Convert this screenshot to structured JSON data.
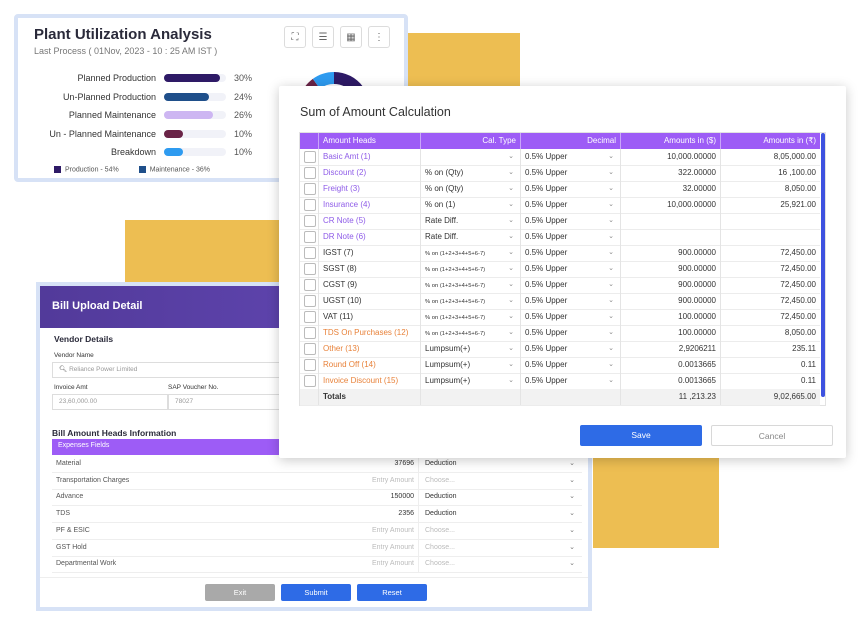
{
  "colors": {
    "purple_header": "#9D5CF6",
    "primary_blue": "#2E6BE6",
    "decor_yellow": "#EDBE52",
    "link_purple": "#8E5BE8",
    "link_orange": "#E8823A"
  },
  "plant": {
    "title": "Plant Utilization Analysis",
    "subtitle": "Last Process ( 01Nov, 2023 - 10 : 25 AM IST )",
    "icons": [
      "fullscreen-icon",
      "document-icon",
      "calendar-icon",
      "more-vertical-icon"
    ],
    "rows": [
      {
        "label": "Planned Production",
        "value": 30,
        "pct": "30%",
        "color": "#2E1A66"
      },
      {
        "label": "Un-Planned Production",
        "value": 24,
        "pct": "24%",
        "color": "#1F4F8A"
      },
      {
        "label": "Planned Maintenance",
        "value": 26,
        "pct": "26%",
        "color": "#CDB6F2"
      },
      {
        "label": "Un - Planned Maintenance",
        "value": 10,
        "pct": "10%",
        "color": "#6A2447"
      },
      {
        "label": "Breakdown",
        "value": 10,
        "pct": "10%",
        "color": "#2E9BF0"
      }
    ],
    "legend": [
      {
        "label": "Production - 54%",
        "color": "#2E1A66"
      },
      {
        "label": "Maintenance - 36%",
        "color": "#1F4F8A"
      }
    ]
  },
  "sum": {
    "title": "Sum of Amount Calculation",
    "headers": {
      "amount_heads": "Amount Heads",
      "cal_type": "Cal. Type",
      "decimal": "Decimal",
      "amount_usd": "Amounts in ($)",
      "amount_inr": "Amounts in (₹)"
    },
    "rows": [
      {
        "head": "Basic Amt (1)",
        "tone": "purple",
        "cal": "",
        "decimal": "0.5% Upper",
        "usd": "10,000.00000",
        "inr": "8,05,000.00"
      },
      {
        "head": "Discount (2)",
        "tone": "purple",
        "cal": "% on (Qty)",
        "decimal": "0.5% Upper",
        "usd": "322.00000",
        "inr": "16 ,100.00"
      },
      {
        "head": "Freight (3)",
        "tone": "purple",
        "cal": "% on (Qty)",
        "decimal": "0.5% Upper",
        "usd": "32.00000",
        "inr": "8,050.00"
      },
      {
        "head": "Insurance (4)",
        "tone": "purple",
        "cal": "% on (1)",
        "decimal": "0.5% Upper",
        "usd": "10,000.00000",
        "inr": "25,921.00"
      },
      {
        "head": "CR Note (5)",
        "tone": "purple",
        "cal": "Rate Diff.",
        "decimal": "0.5% Upper",
        "usd": "",
        "inr": ""
      },
      {
        "head": "DR Note (6)",
        "tone": "purple",
        "cal": "Rate Diff.",
        "decimal": "0.5% Upper",
        "usd": "",
        "inr": ""
      },
      {
        "head": "IGST (7)",
        "tone": "dark",
        "cal": "% on (1+2+3+4+5+6-7)",
        "decimal": "0.5% Upper",
        "usd": "900.00000",
        "inr": "72,450.00"
      },
      {
        "head": "SGST (8)",
        "tone": "dark",
        "cal": "% on (1+2+3+4+5+6-7)",
        "decimal": "0.5% Upper",
        "usd": "900.00000",
        "inr": "72,450.00"
      },
      {
        "head": "CGST (9)",
        "tone": "dark",
        "cal": "% on (1+2+3+4+5+6-7)",
        "decimal": "0.5% Upper",
        "usd": "900.00000",
        "inr": "72,450.00"
      },
      {
        "head": "UGST (10)",
        "tone": "dark",
        "cal": "% on (1+2+3+4+5+6-7)",
        "decimal": "0.5% Upper",
        "usd": "900.00000",
        "inr": "72,450.00"
      },
      {
        "head": "VAT (11)",
        "tone": "dark",
        "cal": "% on (1+2+3+4+5+6-7)",
        "decimal": "0.5% Upper",
        "usd": "100.00000",
        "inr": "72,450.00"
      },
      {
        "head": "TDS On Purchases (12)",
        "tone": "orange",
        "cal": "% on (1+2+3+4+5+6-7)",
        "decimal": "0.5% Upper",
        "usd": "100.00000",
        "inr": "8,050.00"
      },
      {
        "head": "Other  (13)",
        "tone": "orange",
        "cal": "Lumpsum(+)",
        "decimal": "0.5% Upper",
        "usd": "2,9206211",
        "inr": "235.11"
      },
      {
        "head": "Round Off (14)",
        "tone": "orange",
        "cal": "Lumpsum(+)",
        "decimal": "0.5% Upper",
        "usd": "0.0013665",
        "inr": "0.11"
      },
      {
        "head": "Invoice Discount (15)",
        "tone": "orange",
        "cal": "Lumpsum(+)",
        "decimal": "0.5% Upper",
        "usd": "0.0013665",
        "inr": "0.11"
      }
    ],
    "totals": {
      "label": "Totals",
      "usd": "11 ,213.23",
      "inr": "9,02,665.00"
    },
    "save_label": "Save",
    "cancel_label": "Cancel"
  },
  "bill": {
    "title": "Bill Upload Detail",
    "vendor_section": "Vendor Details",
    "vendor_name_label": "Vendor Name",
    "vendor_name_placeholder": "Reliance Power Limited",
    "invoice_amt_label": "Invoice Amt",
    "invoice_amt_value": "23,60,000.00",
    "sap_label": "SAP Voucher No.",
    "sap_value": "78027",
    "heads_section": "Bill Amount Heads Information",
    "expenses_header": "Expenses Fields",
    "rows": [
      {
        "name": "Material",
        "amount": "37696",
        "amount_ph": false,
        "type": "Deduction",
        "type_ph": false
      },
      {
        "name": "Transportation Charges",
        "amount": "Entry Amount",
        "amount_ph": true,
        "type": "Choose...",
        "type_ph": true
      },
      {
        "name": "Advance",
        "amount": "150000",
        "amount_ph": false,
        "type": "Deduction",
        "type_ph": false
      },
      {
        "name": "TDS",
        "amount": "2356",
        "amount_ph": false,
        "type": "Deduction",
        "type_ph": false
      },
      {
        "name": "PF & ESIC",
        "amount": "Entry Amount",
        "amount_ph": true,
        "type": "Choose...",
        "type_ph": true
      },
      {
        "name": "GST Hold",
        "amount": "Entry Amount",
        "amount_ph": true,
        "type": "Choose...",
        "type_ph": true
      },
      {
        "name": "Departmental Work",
        "amount": "Entry Amount",
        "amount_ph": true,
        "type": "Choose...",
        "type_ph": true
      }
    ],
    "exit_label": "Exit",
    "submit_label": "Submit",
    "reset_label": "Reset"
  }
}
